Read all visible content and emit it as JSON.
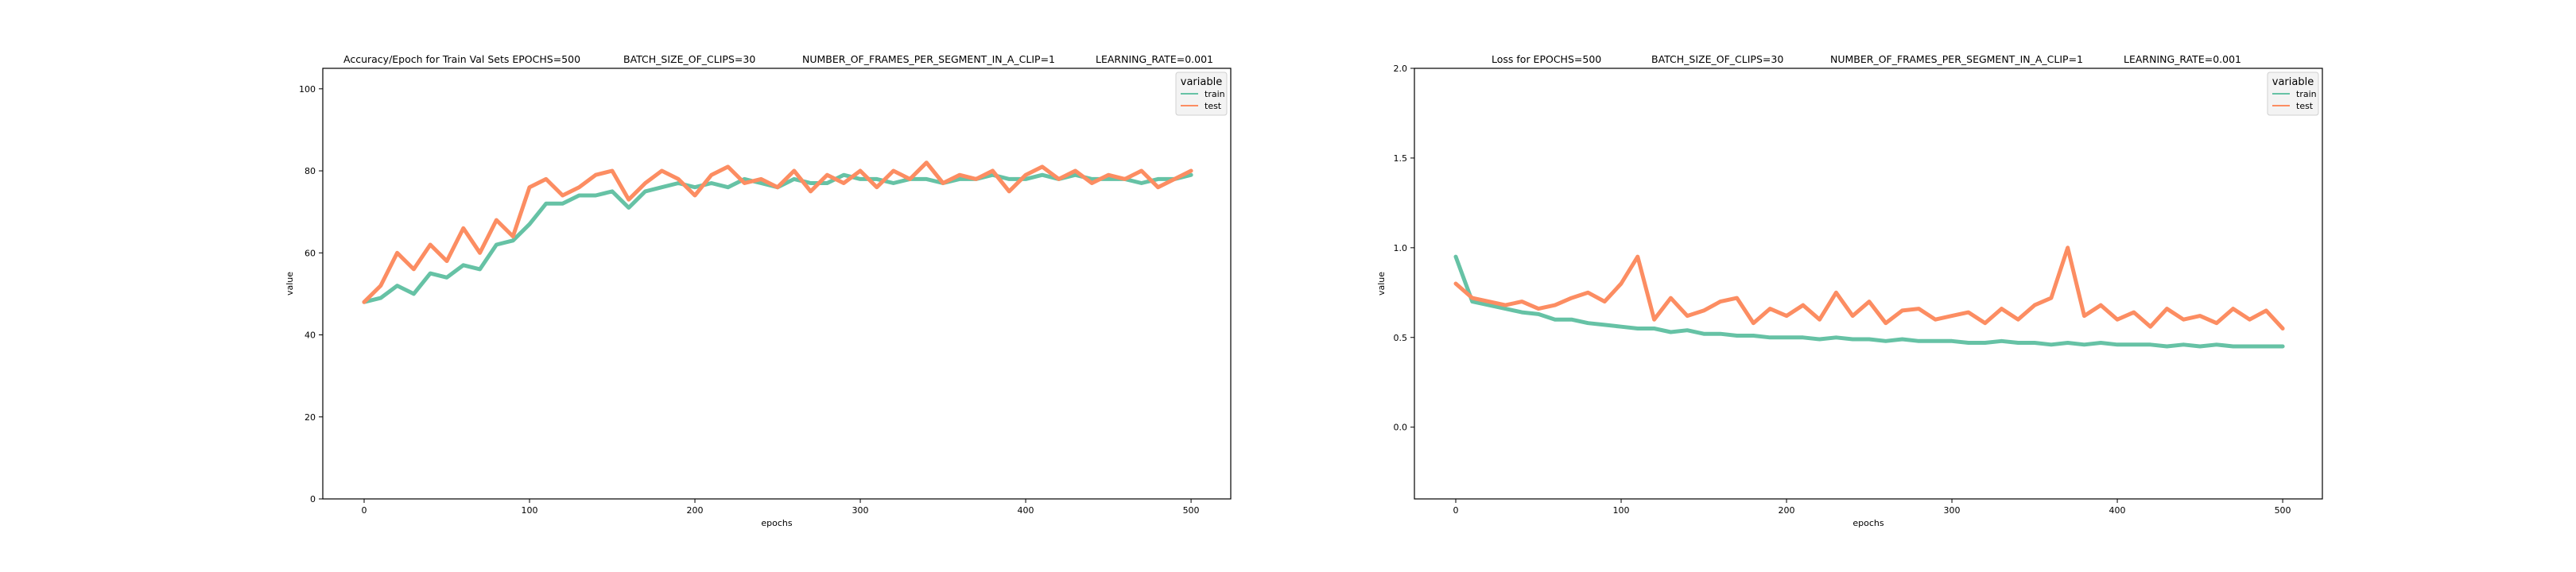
{
  "colors": {
    "train": "#66c2a5",
    "test": "#fc8d62",
    "legend_bg": "#f3f3f3"
  },
  "chart_data": [
    {
      "type": "line",
      "title_parts": [
        "Accuracy/Epoch for Train Val Sets EPOCHS=500",
        "BATCH_SIZE_OF_CLIPS=30",
        "NUMBER_OF_FRAMES_PER_SEGMENT_IN_A_CLIP=1",
        "LEARNING_RATE=0.001"
      ],
      "xlabel": "epochs",
      "ylabel": "value",
      "xlim": [
        -25,
        524
      ],
      "ylim": [
        0,
        105
      ],
      "xticks": [
        0,
        100,
        200,
        300,
        400,
        500
      ],
      "yticks": [
        0,
        20,
        40,
        60,
        80,
        100
      ],
      "grid": false,
      "legend": {
        "title": "variable",
        "placement": "top-right",
        "entries": [
          "train",
          "test"
        ]
      },
      "x": [
        0,
        10,
        20,
        30,
        40,
        50,
        60,
        70,
        80,
        90,
        100,
        110,
        120,
        130,
        140,
        150,
        160,
        170,
        180,
        190,
        200,
        210,
        220,
        230,
        240,
        250,
        260,
        270,
        280,
        290,
        300,
        310,
        320,
        330,
        340,
        350,
        360,
        370,
        380,
        390,
        400,
        410,
        420,
        430,
        440,
        450,
        460,
        470,
        480,
        490,
        500
      ],
      "series": [
        {
          "name": "train",
          "values": [
            48,
            49,
            52,
            50,
            55,
            54,
            57,
            56,
            62,
            63,
            67,
            72,
            72,
            74,
            74,
            75,
            71,
            75,
            76,
            77,
            76,
            77,
            76,
            78,
            77,
            76,
            78,
            77,
            77,
            79,
            78,
            78,
            77,
            78,
            78,
            77,
            78,
            78,
            79,
            78,
            78,
            79,
            78,
            79,
            78,
            78,
            78,
            77,
            78,
            78,
            79
          ]
        },
        {
          "name": "test",
          "values": [
            48,
            52,
            60,
            56,
            62,
            58,
            66,
            60,
            68,
            64,
            76,
            78,
            74,
            76,
            79,
            80,
            73,
            77,
            80,
            78,
            74,
            79,
            81,
            77,
            78,
            76,
            80,
            75,
            79,
            77,
            80,
            76,
            80,
            78,
            82,
            77,
            79,
            78,
            80,
            75,
            79,
            81,
            78,
            80,
            77,
            79,
            78,
            80,
            76,
            78,
            80
          ]
        }
      ]
    },
    {
      "type": "line",
      "title_parts": [
        "Loss for  EPOCHS=500",
        "BATCH_SIZE_OF_CLIPS=30",
        "NUMBER_OF_FRAMES_PER_SEGMENT_IN_A_CLIP=1",
        "LEARNING_RATE=0.001"
      ],
      "xlabel": "epochs",
      "ylabel": "value",
      "xlim": [
        -25,
        524
      ],
      "ylim": [
        -0.4,
        2.0
      ],
      "xticks": [
        0,
        100,
        200,
        300,
        400,
        500
      ],
      "yticks": [
        0.0,
        0.5,
        1.0,
        1.5,
        2.0
      ],
      "ytick_labels": [
        "0.0",
        "0.5",
        "1.0",
        "1.5",
        "2.0"
      ],
      "grid": false,
      "legend": {
        "title": "variable",
        "placement": "top-right",
        "entries": [
          "train",
          "test"
        ]
      },
      "x": [
        0,
        10,
        20,
        30,
        40,
        50,
        60,
        70,
        80,
        90,
        100,
        110,
        120,
        130,
        140,
        150,
        160,
        170,
        180,
        190,
        200,
        210,
        220,
        230,
        240,
        250,
        260,
        270,
        280,
        290,
        300,
        310,
        320,
        330,
        340,
        350,
        360,
        370,
        380,
        390,
        400,
        410,
        420,
        430,
        440,
        450,
        460,
        470,
        480,
        490,
        500
      ],
      "series": [
        {
          "name": "train",
          "values": [
            0.95,
            0.7,
            0.68,
            0.66,
            0.64,
            0.63,
            0.6,
            0.6,
            0.58,
            0.57,
            0.56,
            0.55,
            0.55,
            0.53,
            0.54,
            0.52,
            0.52,
            0.51,
            0.51,
            0.5,
            0.5,
            0.5,
            0.49,
            0.5,
            0.49,
            0.49,
            0.48,
            0.49,
            0.48,
            0.48,
            0.48,
            0.47,
            0.47,
            0.48,
            0.47,
            0.47,
            0.46,
            0.47,
            0.46,
            0.47,
            0.46,
            0.46,
            0.46,
            0.45,
            0.46,
            0.45,
            0.46,
            0.45,
            0.45,
            0.45,
            0.45
          ]
        },
        {
          "name": "test",
          "values": [
            0.8,
            0.72,
            0.7,
            0.68,
            0.7,
            0.66,
            0.68,
            0.72,
            0.75,
            0.7,
            0.8,
            0.95,
            0.6,
            0.72,
            0.62,
            0.65,
            0.7,
            0.72,
            0.58,
            0.66,
            0.62,
            0.68,
            0.6,
            0.75,
            0.62,
            0.7,
            0.58,
            0.65,
            0.66,
            0.6,
            0.62,
            0.64,
            0.58,
            0.66,
            0.6,
            0.68,
            0.72,
            1.0,
            0.62,
            0.68,
            0.6,
            0.64,
            0.56,
            0.66,
            0.6,
            0.62,
            0.58,
            0.66,
            0.6,
            0.65,
            0.55
          ]
        }
      ]
    }
  ]
}
